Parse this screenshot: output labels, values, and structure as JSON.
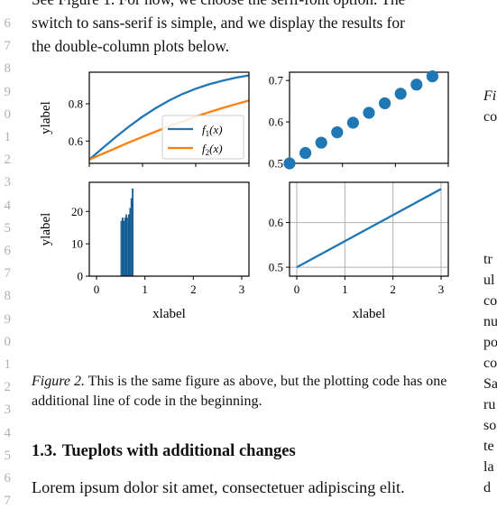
{
  "line_numbers": [
    "6",
    "7",
    "8",
    "9",
    "0",
    "1",
    "2",
    "3",
    "4",
    "5",
    "6",
    "7",
    "8",
    "9",
    "0",
    "1",
    "2",
    "3",
    "4",
    "5",
    "6",
    "7"
  ],
  "intro": {
    "line1": "See Figure 1. For now, we choose the serif-font option. The",
    "line2": "switch to sans-serif is simple, and we display the results for",
    "line3": "the double-column plots below."
  },
  "figure": {
    "caption_label": "Figure 2.",
    "caption_text": " This is the same figure as above, but the plotting code has one additional line of code in the beginning."
  },
  "section": {
    "number": "1.3.",
    "title": "Tueplots with additional changes"
  },
  "body_text": "Lorem ipsum dolor sit amet, consectetuer adipiscing elit.",
  "right_column": {
    "caption_fragment": [
      "Fi",
      "co"
    ],
    "text_fragment": [
      "tr",
      "ul",
      "co",
      "nu",
      "po",
      "co",
      "Sa",
      "ru",
      "so",
      "te",
      "la",
      "d"
    ]
  },
  "colors": {
    "blue": "#1f77b4",
    "orange": "#ff7f0e",
    "grid": "#b0b0b0",
    "line_number_gray": "#b0b0b0"
  },
  "chart_data": [
    {
      "type": "line",
      "position": "top-left",
      "ylabel": "ylabel",
      "xlabel": "",
      "xlim": [
        0,
        3
      ],
      "ylim": [
        0.48,
        0.97
      ],
      "yticks": [
        "0.6",
        "0.8"
      ],
      "ytick_values": [
        0.6,
        0.8
      ],
      "xticks_labeled": false,
      "legend": {
        "placement": "lower-right"
      },
      "series": [
        {
          "name": "f1(x)",
          "legend_main": "f",
          "legend_sub": "1",
          "legend_tail": "(x)",
          "color": "#1f77b4",
          "x": [
            0,
            0.25,
            0.5,
            0.75,
            1,
            1.25,
            1.5,
            1.75,
            2,
            2.25,
            2.5,
            2.75,
            3
          ],
          "y": [
            0.5,
            0.562,
            0.622,
            0.679,
            0.731,
            0.777,
            0.818,
            0.853,
            0.881,
            0.905,
            0.924,
            0.94,
            0.953
          ]
        },
        {
          "name": "f2(x)",
          "legend_main": "f",
          "legend_sub": "2",
          "legend_tail": "(x)",
          "color": "#ff7f0e",
          "x": [
            0,
            0.25,
            0.5,
            0.75,
            1,
            1.25,
            1.5,
            1.75,
            2,
            2.25,
            2.5,
            2.75,
            3
          ],
          "y": [
            0.5,
            0.531,
            0.562,
            0.593,
            0.622,
            0.651,
            0.679,
            0.705,
            0.731,
            0.755,
            0.777,
            0.798,
            0.818
          ]
        }
      ]
    },
    {
      "type": "scatter",
      "position": "top-right",
      "xlim": [
        0,
        3
      ],
      "ylim": [
        0.5,
        0.72
      ],
      "yticks": [
        "0.5",
        "0.6",
        "0.7"
      ],
      "ytick_values": [
        0.5,
        0.6,
        0.7
      ],
      "xticks_labeled": false,
      "series": [
        {
          "name": "",
          "color": "#1f77b4",
          "x": [
            0,
            0.3,
            0.6,
            0.9,
            1.2,
            1.5,
            1.8,
            2.1,
            2.4,
            2.7
          ],
          "y": [
            0.5,
            0.525,
            0.55,
            0.575,
            0.598,
            0.622,
            0.645,
            0.668,
            0.69,
            0.71
          ]
        }
      ]
    },
    {
      "type": "bar",
      "position": "bottom-left",
      "ylabel": "ylabel",
      "xlabel": "xlabel",
      "xlim": [
        -0.15,
        3.15
      ],
      "ylim": [
        0,
        29
      ],
      "yticks": [
        "0",
        "10",
        "20"
      ],
      "ytick_values": [
        0,
        10,
        20
      ],
      "xticks": [
        "0",
        "1",
        "2",
        "3"
      ],
      "xtick_values": [
        0,
        1,
        2,
        3
      ],
      "bin_width": 0.026,
      "series": [
        {
          "name": "",
          "color": "#1f77b4",
          "bin_starts": [
            0.5,
            0.526,
            0.552,
            0.578,
            0.604,
            0.63,
            0.656,
            0.682,
            0.708,
            0.734
          ],
          "values": [
            17,
            18,
            17,
            18,
            19,
            18,
            19,
            21,
            24,
            27
          ]
        }
      ]
    },
    {
      "type": "line",
      "position": "bottom-right",
      "xlabel": "xlabel",
      "xlim": [
        -0.15,
        3.15
      ],
      "ylim": [
        0.48,
        0.69
      ],
      "grid": true,
      "yticks": [
        "0.5",
        "0.6"
      ],
      "ytick_values": [
        0.5,
        0.6
      ],
      "xticks": [
        "0",
        "1",
        "2",
        "3"
      ],
      "xtick_values": [
        0,
        1,
        2,
        3
      ],
      "series": [
        {
          "name": "",
          "color": "#1f77b4",
          "x": [
            0,
            3
          ],
          "y": [
            0.5,
            0.675
          ]
        }
      ]
    }
  ]
}
